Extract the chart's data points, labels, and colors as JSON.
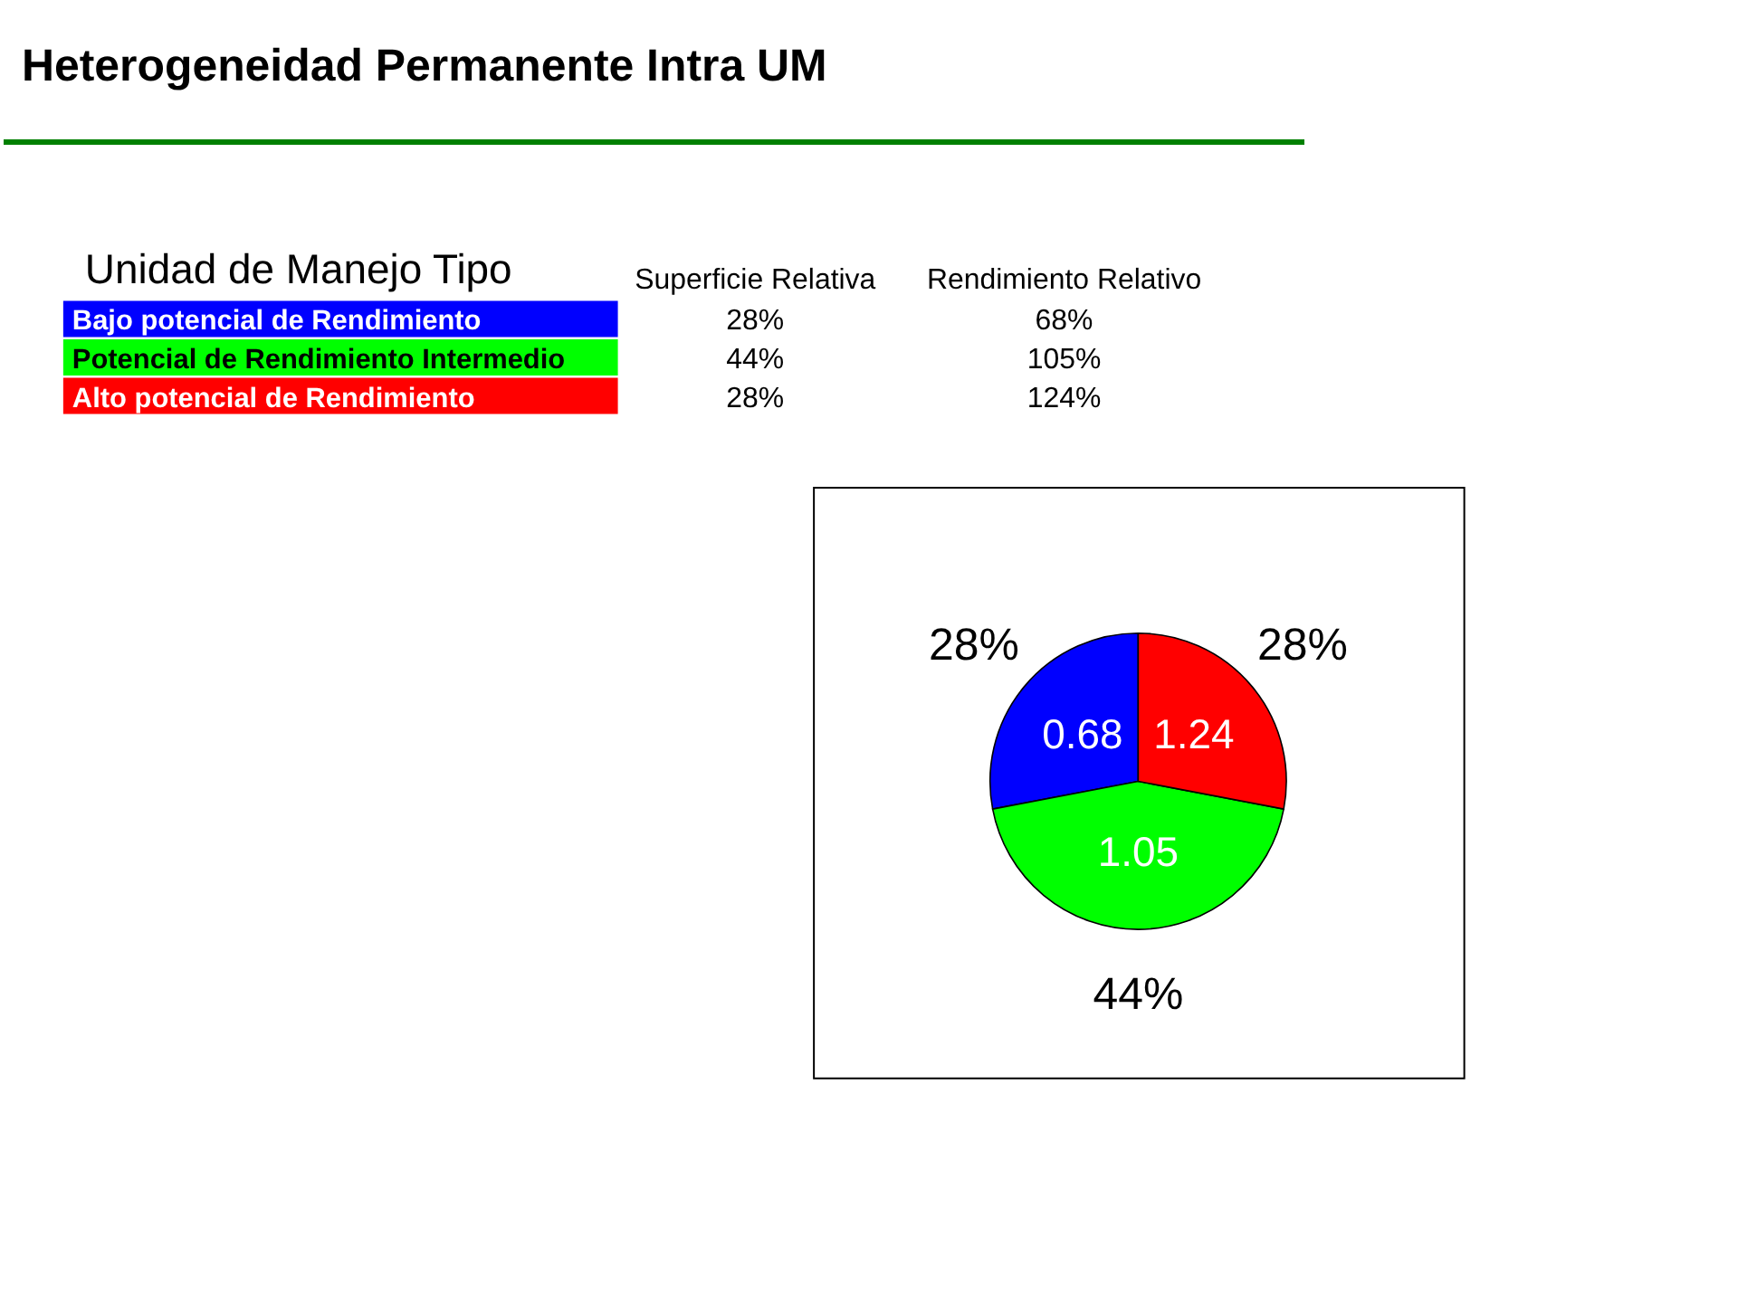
{
  "chart_data": [
    {
      "type": "other",
      "title": "Heterogeneidad Permanente Intra UM",
      "subtitle": "Unidad de Manejo Tipo",
      "categories": [
        "Bajo potencial de Rendimiento",
        "Potencial de Rendimiento Intermedio",
        "Alto potencial de Rendimiento"
      ],
      "colors": [
        "#0000ff",
        "#00ff00",
        "#ff0000"
      ],
      "series": [
        {
          "name": "Superficie Relativa",
          "values": [
            28,
            44,
            28
          ],
          "value_labels": [
            "28%",
            "44%",
            "28%"
          ]
        },
        {
          "name": "Rendimiento Relativo",
          "values": [
            68,
            105,
            124
          ],
          "value_labels": [
            "68%",
            "105%",
            "124%"
          ]
        }
      ]
    },
    {
      "type": "pie",
      "categories": [
        null,
        null,
        null
      ],
      "values": [
        28,
        44,
        28
      ],
      "colors": [
        "#0000ff",
        "#00ff00",
        "#ff0000"
      ],
      "value_labels": [
        "28%",
        "44%",
        "28%"
      ],
      "annotations": [
        "0.68",
        "1.05",
        "1.24"
      ]
    }
  ]
}
